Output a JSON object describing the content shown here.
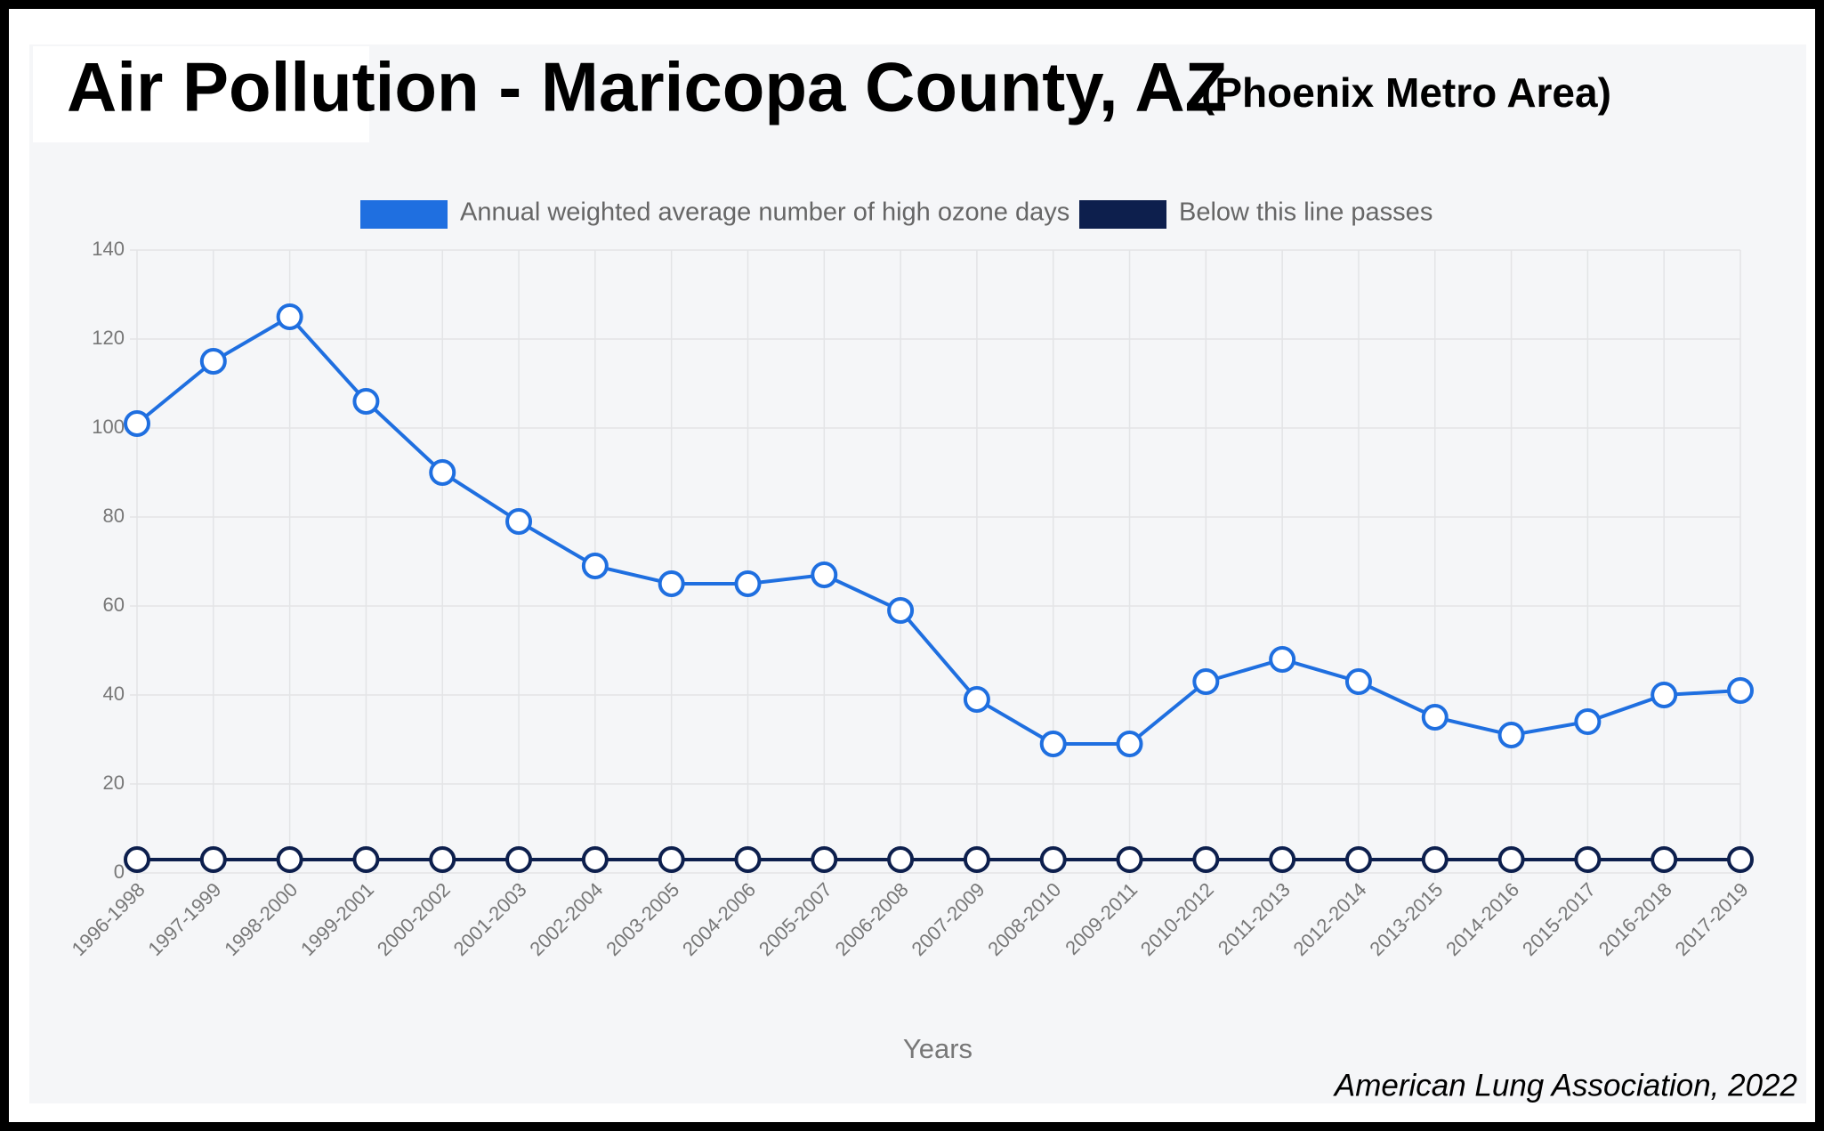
{
  "chart_data": {
    "type": "line",
    "title": "Air Pollution - Maricopa County, AZ",
    "subtitle": "(Phoenix Metro Area)",
    "x_label": "Years",
    "source": "American Lung Association, 2022",
    "categories": [
      "1996-1998",
      "1997-1999",
      "1998-2000",
      "1999-2001",
      "2000-2002",
      "2001-2003",
      "2002-2004",
      "2003-2005",
      "2004-2006",
      "2005-2007",
      "2006-2008",
      "2007-2009",
      "2008-2010",
      "2009-2011",
      "2010-2012",
      "2011-2013",
      "2012-2014",
      "2013-2015",
      "2014-2016",
      "2015-2017",
      "2016-2018",
      "2017-2019"
    ],
    "series": [
      {
        "name": "Annual weighted average number of high ozone days",
        "color": "#1f6fe0",
        "values": [
          101,
          115,
          125,
          106,
          90,
          79,
          69,
          65,
          65,
          67,
          59,
          39,
          29,
          29,
          43,
          48,
          43,
          35,
          31,
          34,
          40,
          41
        ]
      },
      {
        "name": "Below this line passes",
        "color": "#0d1f4d",
        "values": [
          3,
          3,
          3,
          3,
          3,
          3,
          3,
          3,
          3,
          3,
          3,
          3,
          3,
          3,
          3,
          3,
          3,
          3,
          3,
          3,
          3,
          3
        ]
      }
    ],
    "ylim": [
      0,
      140
    ],
    "yticks": [
      0,
      20,
      40,
      60,
      80,
      100,
      120,
      140
    ],
    "grid": true
  }
}
